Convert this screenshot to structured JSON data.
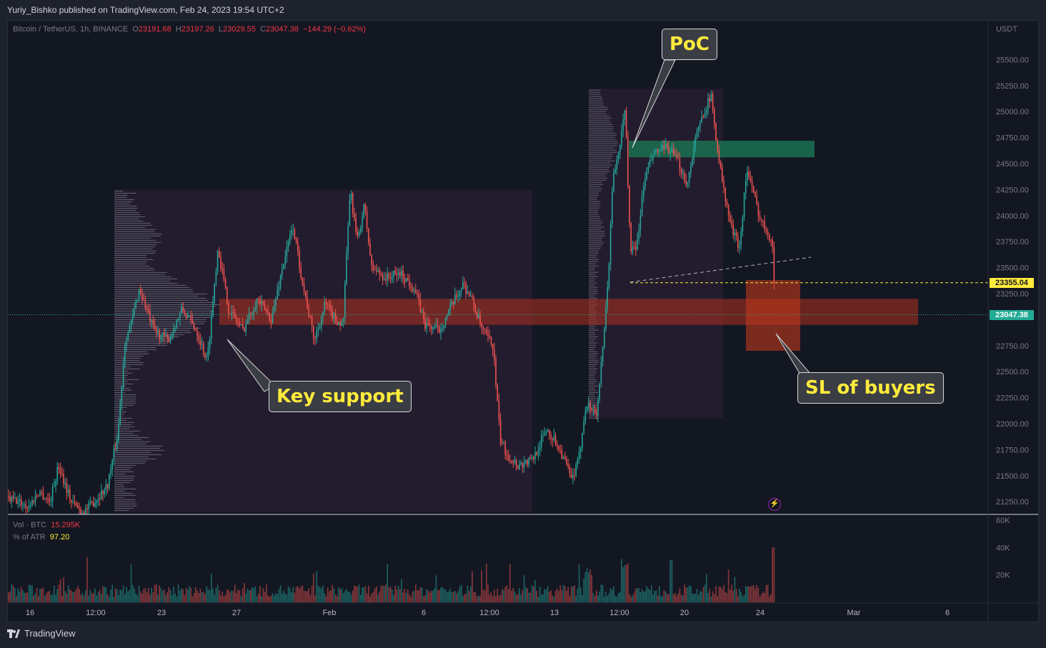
{
  "header": {
    "published": "Yuriy_Bishko published on TradingView.com, Feb 24, 2023 19:54 UTC+2"
  },
  "legend": {
    "symbol": "Bitcoin / TetherUS, 1h, BINANCE",
    "open_label": "O",
    "open": "23191.68",
    "high_label": "H",
    "high": "23197.26",
    "low_label": "L",
    "low": "23029.55",
    "close_label": "C",
    "close": "23047.38",
    "change": "−144.29 (−0.62%)"
  },
  "volume_legend": {
    "vol_label": "Vol · BTC",
    "vol_value": "15.295K",
    "atr_label": "% of ATR",
    "atr_value": "97.20"
  },
  "annotations": {
    "poc": "PoC",
    "key_support": "Key support",
    "sl_buyers": "SL of buyers"
  },
  "price_tags": {
    "level": "23355.04",
    "last": "23047.38"
  },
  "colors": {
    "up": "#26a69a",
    "down": "#ef5350",
    "background": "#131722",
    "support_zone": "#b2321f",
    "poc_zone": "#1b6b4f",
    "profile": "#787b86",
    "tag_level": "#ffeb3b",
    "tag_last": "#22ab94"
  },
  "footer": {
    "brand": "TradingView"
  },
  "chart_data": {
    "type": "candlestick",
    "title": "Bitcoin / TetherUS, 1h, BINANCE",
    "price_axis": {
      "unit": "USDT",
      "ticks": [
        "25500.00",
        "25250.00",
        "25000.00",
        "24750.00",
        "24500.00",
        "24250.00",
        "24000.00",
        "23750.00",
        "23500.00",
        "23250.00",
        "22750.00",
        "22500.00",
        "22250.00",
        "22000.00",
        "21750.00",
        "21500.00",
        "21250.00"
      ],
      "range": [
        21150,
        25850
      ]
    },
    "volume_axis": {
      "ticks": [
        "60K",
        "40K",
        "20K"
      ],
      "range": [
        0,
        60000
      ]
    },
    "time_axis": {
      "ticks": [
        "16",
        "12:00",
        "23",
        "27",
        "Feb",
        "6",
        "12:00",
        "13",
        "12:00",
        "20",
        "24",
        "Mar",
        "6"
      ]
    },
    "price_path": [
      [
        0,
        21300
      ],
      [
        25,
        21250
      ],
      [
        40,
        21200
      ],
      [
        55,
        21350
      ],
      [
        70,
        21250
      ],
      [
        82,
        21600
      ],
      [
        100,
        21250
      ],
      [
        115,
        21150
      ],
      [
        125,
        21200
      ],
      [
        150,
        21400
      ],
      [
        165,
        21900
      ],
      [
        175,
        22800
      ],
      [
        185,
        23000
      ],
      [
        195,
        23300
      ],
      [
        215,
        22900
      ],
      [
        235,
        22800
      ],
      [
        255,
        23100
      ],
      [
        275,
        22900
      ],
      [
        290,
        22600
      ],
      [
        305,
        23700
      ],
      [
        320,
        23100
      ],
      [
        340,
        22900
      ],
      [
        360,
        23200
      ],
      [
        380,
        23000
      ],
      [
        395,
        23500
      ],
      [
        410,
        23900
      ],
      [
        425,
        23300
      ],
      [
        440,
        22800
      ],
      [
        455,
        23150
      ],
      [
        470,
        23000
      ],
      [
        480,
        22950
      ],
      [
        490,
        24250
      ],
      [
        500,
        23750
      ],
      [
        510,
        24100
      ],
      [
        520,
        23500
      ],
      [
        540,
        23400
      ],
      [
        560,
        23450
      ],
      [
        580,
        23300
      ],
      [
        595,
        22950
      ],
      [
        615,
        22900
      ],
      [
        630,
        23100
      ],
      [
        648,
        23350
      ],
      [
        660,
        23200
      ],
      [
        675,
        22900
      ],
      [
        690,
        22750
      ],
      [
        700,
        21850
      ],
      [
        710,
        21700
      ],
      [
        725,
        21600
      ],
      [
        745,
        21650
      ],
      [
        765,
        21950
      ],
      [
        780,
        21800
      ],
      [
        790,
        21650
      ],
      [
        800,
        21450
      ],
      [
        810,
        21650
      ],
      [
        820,
        22200
      ],
      [
        835,
        22100
      ],
      [
        845,
        22800
      ],
      [
        852,
        23500
      ],
      [
        858,
        24400
      ],
      [
        865,
        24550
      ],
      [
        875,
        25050
      ],
      [
        882,
        23700
      ],
      [
        890,
        23650
      ],
      [
        902,
        24350
      ],
      [
        915,
        24600
      ],
      [
        935,
        24650
      ],
      [
        950,
        24500
      ],
      [
        962,
        24300
      ],
      [
        972,
        24700
      ],
      [
        985,
        25000
      ],
      [
        995,
        25150
      ],
      [
        1005,
        24600
      ],
      [
        1015,
        24150
      ],
      [
        1025,
        23850
      ],
      [
        1035,
        23700
      ],
      [
        1045,
        24450
      ],
      [
        1055,
        24200
      ],
      [
        1065,
        23950
      ],
      [
        1075,
        23850
      ],
      [
        1082,
        23700
      ],
      [
        1084,
        23150
      ],
      [
        1086,
        23047
      ]
    ],
    "volume_profiles": [
      {
        "from_x": 160,
        "to_x": 745,
        "price_range": [
          21150,
          24250
        ],
        "poc_price": 23100
      },
      {
        "from_x": 824,
        "to_x": 1012,
        "price_range": [
          22050,
          25220
        ],
        "poc_price": 24700
      }
    ],
    "zones": [
      {
        "name": "key-support",
        "price_from": 22950,
        "price_to": 23200
      },
      {
        "name": "poc",
        "price_from": 24560,
        "price_to": 24720
      },
      {
        "name": "stop-loss",
        "price_from": 22700,
        "price_to": 23380
      }
    ],
    "levels": [
      {
        "name": "23355.04",
        "price": 23355.04
      },
      {
        "name": "23047.38",
        "price": 23047.38
      }
    ],
    "trendline": {
      "from": [
        882,
        23360
      ],
      "to": [
        1135,
        23600
      ]
    }
  }
}
